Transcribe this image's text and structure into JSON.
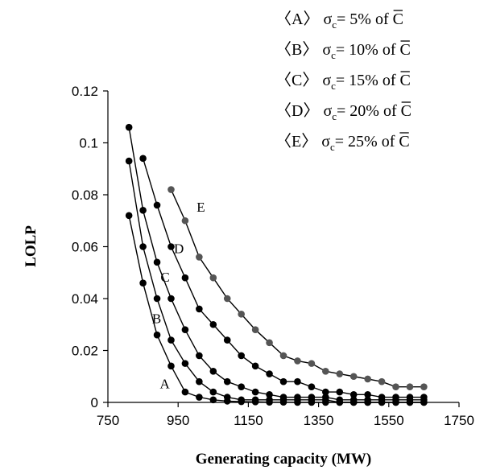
{
  "chart_data": {
    "type": "line",
    "xlabel": "Generating capacity (MW)",
    "ylabel": "LOLP",
    "xlim": [
      750,
      1750
    ],
    "ylim": [
      0,
      0.12
    ],
    "xticks": [
      "750",
      "950",
      "1150",
      "1350",
      "1550",
      "1750"
    ],
    "yticks": [
      "0",
      "0.02",
      "0.04",
      "0.06",
      "0.08",
      "0.1",
      "0.12"
    ],
    "grid": false,
    "legend": [
      {
        "key": "〈A〉",
        "sigma": "σ",
        "sub": "c",
        "rest": "= 5% of ",
        "cbar": "C"
      },
      {
        "key": "〈B〉",
        "sigma": "σ",
        "sub": "c",
        "rest": "= 10% of ",
        "cbar": "C"
      },
      {
        "key": "〈C〉",
        "sigma": "σ",
        "sub": "c",
        "rest": "= 15% of ",
        "cbar": "C"
      },
      {
        "key": "〈D〉",
        "sigma": "σ",
        "sub": "c",
        "rest": "= 20% of ",
        "cbar": "C"
      },
      {
        "key": "〈E〉",
        "sigma": "σ",
        "sub": "c",
        "rest": "= 25% of ",
        "cbar": "C"
      }
    ],
    "series": [
      {
        "name": "A",
        "color": "#000000",
        "x": [
          810,
          850,
          890,
          930,
          970,
          1010,
          1050,
          1090,
          1130,
          1170,
          1210,
          1250,
          1290,
          1330,
          1370,
          1410,
          1450,
          1490,
          1530,
          1570,
          1610,
          1650
        ],
        "y": [
          0.072,
          0.046,
          0.026,
          0.014,
          0.004,
          0.002,
          0.001,
          0.0005,
          0.0003,
          0.0002,
          0.0001,
          0.0001,
          0,
          0,
          0,
          0,
          0,
          0,
          0,
          0,
          0,
          0
        ]
      },
      {
        "name": "B",
        "color": "#000000",
        "x": [
          810,
          850,
          890,
          930,
          970,
          1010,
          1050,
          1090,
          1130,
          1170,
          1210,
          1250,
          1290,
          1330,
          1370,
          1410,
          1450,
          1490,
          1530,
          1570,
          1610,
          1650
        ],
        "y": [
          0.093,
          0.06,
          0.04,
          0.024,
          0.015,
          0.008,
          0.004,
          0.002,
          0.001,
          0.001,
          0.001,
          0.001,
          0.001,
          0.001,
          0.001,
          0,
          0,
          0,
          0,
          0,
          0,
          0
        ]
      },
      {
        "name": "C",
        "color": "#000000",
        "x": [
          810,
          850,
          890,
          930,
          970,
          1010,
          1050,
          1090,
          1130,
          1170,
          1210,
          1250,
          1290,
          1330,
          1370,
          1410,
          1450,
          1490,
          1530,
          1570,
          1610,
          1650
        ],
        "y": [
          0.106,
          0.074,
          0.054,
          0.04,
          0.028,
          0.018,
          0.012,
          0.008,
          0.006,
          0.004,
          0.003,
          0.002,
          0.002,
          0.002,
          0.002,
          0.001,
          0.001,
          0.001,
          0.001,
          0.001,
          0.001,
          0.001
        ]
      },
      {
        "name": "D",
        "color": "#000000",
        "x": [
          850,
          890,
          930,
          970,
          1010,
          1050,
          1090,
          1130,
          1170,
          1210,
          1250,
          1290,
          1330,
          1370,
          1410,
          1450,
          1490,
          1530,
          1570,
          1610,
          1650
        ],
        "y": [
          0.094,
          0.076,
          0.06,
          0.048,
          0.036,
          0.03,
          0.024,
          0.018,
          0.014,
          0.011,
          0.008,
          0.008,
          0.006,
          0.004,
          0.004,
          0.003,
          0.003,
          0.002,
          0.002,
          0.002,
          0.002
        ]
      },
      {
        "name": "E",
        "color": "#555555",
        "x": [
          930,
          970,
          1010,
          1050,
          1090,
          1130,
          1170,
          1210,
          1250,
          1290,
          1330,
          1370,
          1410,
          1450,
          1490,
          1530,
          1570,
          1610,
          1650
        ],
        "y": [
          0.082,
          0.07,
          0.056,
          0.048,
          0.04,
          0.034,
          0.028,
          0.023,
          0.018,
          0.016,
          0.015,
          0.012,
          0.011,
          0.01,
          0.009,
          0.008,
          0.006,
          0.006,
          0.006
        ]
      }
    ]
  }
}
